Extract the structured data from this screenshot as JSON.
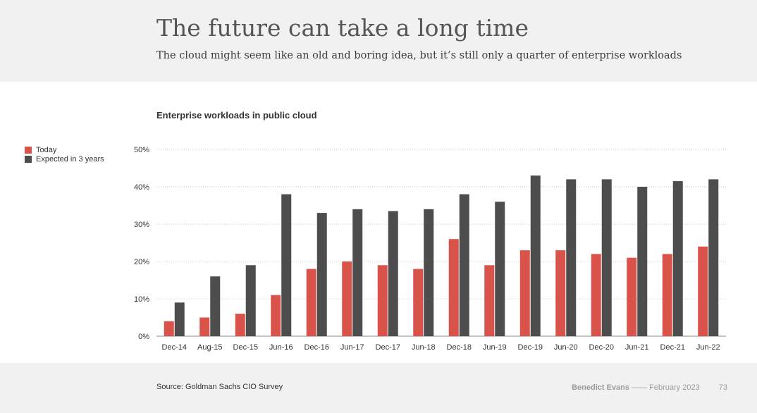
{
  "header": {
    "title": "The future can take a long time",
    "subtitle": "The cloud might seem like an old and boring idea, but it’s still only a quarter of enterprise workloads"
  },
  "chart_data": {
    "type": "bar",
    "title": "Enterprise workloads in public cloud",
    "xlabel": "",
    "ylabel": "",
    "ylim": [
      0,
      50
    ],
    "yticks": [
      "0%",
      "10%",
      "20%",
      "30%",
      "40%",
      "50%"
    ],
    "grid": true,
    "legend_position": "left",
    "categories": [
      "Dec-14",
      "Aug-15",
      "Dec-15",
      "Jun-16",
      "Dec-16",
      "Jun-17",
      "Dec-17",
      "Jun-18",
      "Dec-18",
      "Jun-19",
      "Dec-19",
      "Jun-20",
      "Dec-20",
      "Jun-21",
      "Dec-21",
      "Jun-22"
    ],
    "series": [
      {
        "name": "Today",
        "color": "#d9534a",
        "values": [
          4,
          5,
          6,
          11,
          18,
          20,
          19,
          18,
          26,
          19,
          23,
          23,
          22,
          21,
          22,
          24
        ]
      },
      {
        "name": "Expected in 3 years",
        "color": "#4d4d4d",
        "values": [
          9,
          16,
          19,
          38,
          33,
          34,
          33.5,
          34,
          38,
          36,
          43,
          42,
          42,
          40,
          41.5,
          42
        ]
      }
    ]
  },
  "footer": {
    "source": "Source: Goldman Sachs CIO Survey",
    "author": "Benedict Evans",
    "separator": "——",
    "date": "February 2023",
    "page_number": "73"
  }
}
